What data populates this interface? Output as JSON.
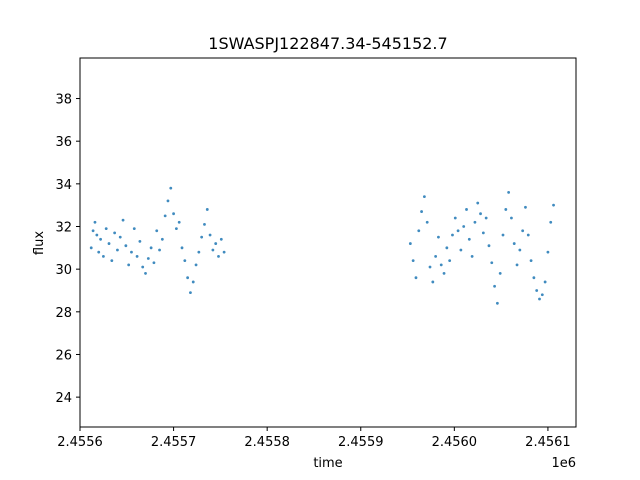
{
  "chart_data": {
    "type": "scatter",
    "title": "1SWASPJ122847.34-545152.7",
    "xlabel": "time",
    "ylabel": "flux",
    "x_offset_label": "1e6",
    "xlim": [
      2455600,
      2456130
    ],
    "ylim": [
      22.6,
      39.9
    ],
    "xticks": [
      {
        "value": 2455600,
        "label": "2.4556"
      },
      {
        "value": 2455700,
        "label": "2.4557"
      },
      {
        "value": 2455800,
        "label": "2.4558"
      },
      {
        "value": 2455900,
        "label": "2.4559"
      },
      {
        "value": 2456000,
        "label": "2.4560"
      },
      {
        "value": 2456100,
        "label": "2.4561"
      }
    ],
    "yticks": [
      {
        "value": 24,
        "label": "24"
      },
      {
        "value": 26,
        "label": "26"
      },
      {
        "value": 28,
        "label": "28"
      },
      {
        "value": 30,
        "label": "30"
      },
      {
        "value": 32,
        "label": "32"
      },
      {
        "value": 34,
        "label": "34"
      },
      {
        "value": 36,
        "label": "36"
      },
      {
        "value": 38,
        "label": "38"
      }
    ],
    "grid": false,
    "point_color": "#1f77b4",
    "series": [
      {
        "x": [
          2455612,
          2455614,
          2455616,
          2455618,
          2455620,
          2455622,
          2455625,
          2455628,
          2455631,
          2455634,
          2455637,
          2455640,
          2455643,
          2455646,
          2455649,
          2455652,
          2455655,
          2455658,
          2455661,
          2455664,
          2455667,
          2455670,
          2455673,
          2455676,
          2455679,
          2455682,
          2455685,
          2455688,
          2455691,
          2455694,
          2455697,
          2455700,
          2455703,
          2455706,
          2455709,
          2455712,
          2455715,
          2455718,
          2455721,
          2455724,
          2455727,
          2455730,
          2455733,
          2455736,
          2455739,
          2455742,
          2455745,
          2455748,
          2455751,
          2455754
        ],
        "y": [
          31.0,
          31.8,
          32.2,
          31.6,
          30.8,
          31.4,
          30.6,
          31.9,
          31.2,
          30.4,
          31.7,
          30.9,
          31.5,
          32.3,
          31.1,
          30.2,
          30.8,
          31.9,
          30.6,
          31.3,
          30.1,
          29.8,
          30.5,
          31.0,
          30.3,
          31.8,
          30.9,
          31.4,
          32.5,
          33.2,
          33.8,
          32.6,
          31.9,
          32.2,
          31.0,
          30.4,
          29.6,
          28.9,
          29.4,
          30.2,
          30.8,
          31.5,
          32.1,
          32.8,
          31.6,
          30.9,
          31.2,
          30.6,
          31.4,
          30.8
        ]
      },
      {
        "x": [
          2455953,
          2455956,
          2455959,
          2455962,
          2455965,
          2455968,
          2455971,
          2455974,
          2455977,
          2455980,
          2455983,
          2455986,
          2455989,
          2455992,
          2455995,
          2455998,
          2456001,
          2456004,
          2456007,
          2456010,
          2456013,
          2456016,
          2456019,
          2456022,
          2456025,
          2456028,
          2456031,
          2456034,
          2456037,
          2456040,
          2456043,
          2456046,
          2456049,
          2456052,
          2456055,
          2456058,
          2456061,
          2456064,
          2456067,
          2456070,
          2456073,
          2456076,
          2456079,
          2456082,
          2456085,
          2456088,
          2456091,
          2456094,
          2456097,
          2456100,
          2456103,
          2456106
        ],
        "y": [
          31.2,
          30.4,
          29.6,
          31.8,
          32.7,
          33.4,
          32.2,
          30.1,
          29.4,
          30.6,
          31.5,
          30.2,
          29.8,
          31.0,
          30.4,
          31.6,
          32.4,
          31.8,
          30.9,
          32.0,
          32.8,
          31.4,
          30.6,
          32.2,
          33.1,
          32.6,
          31.7,
          32.4,
          31.1,
          30.3,
          29.2,
          28.4,
          29.8,
          31.6,
          32.8,
          33.6,
          32.4,
          31.2,
          30.2,
          30.9,
          31.8,
          32.9,
          31.6,
          30.4,
          29.6,
          29.0,
          28.6,
          28.8,
          29.4,
          30.8,
          32.2,
          33.0
        ]
      }
    ]
  }
}
